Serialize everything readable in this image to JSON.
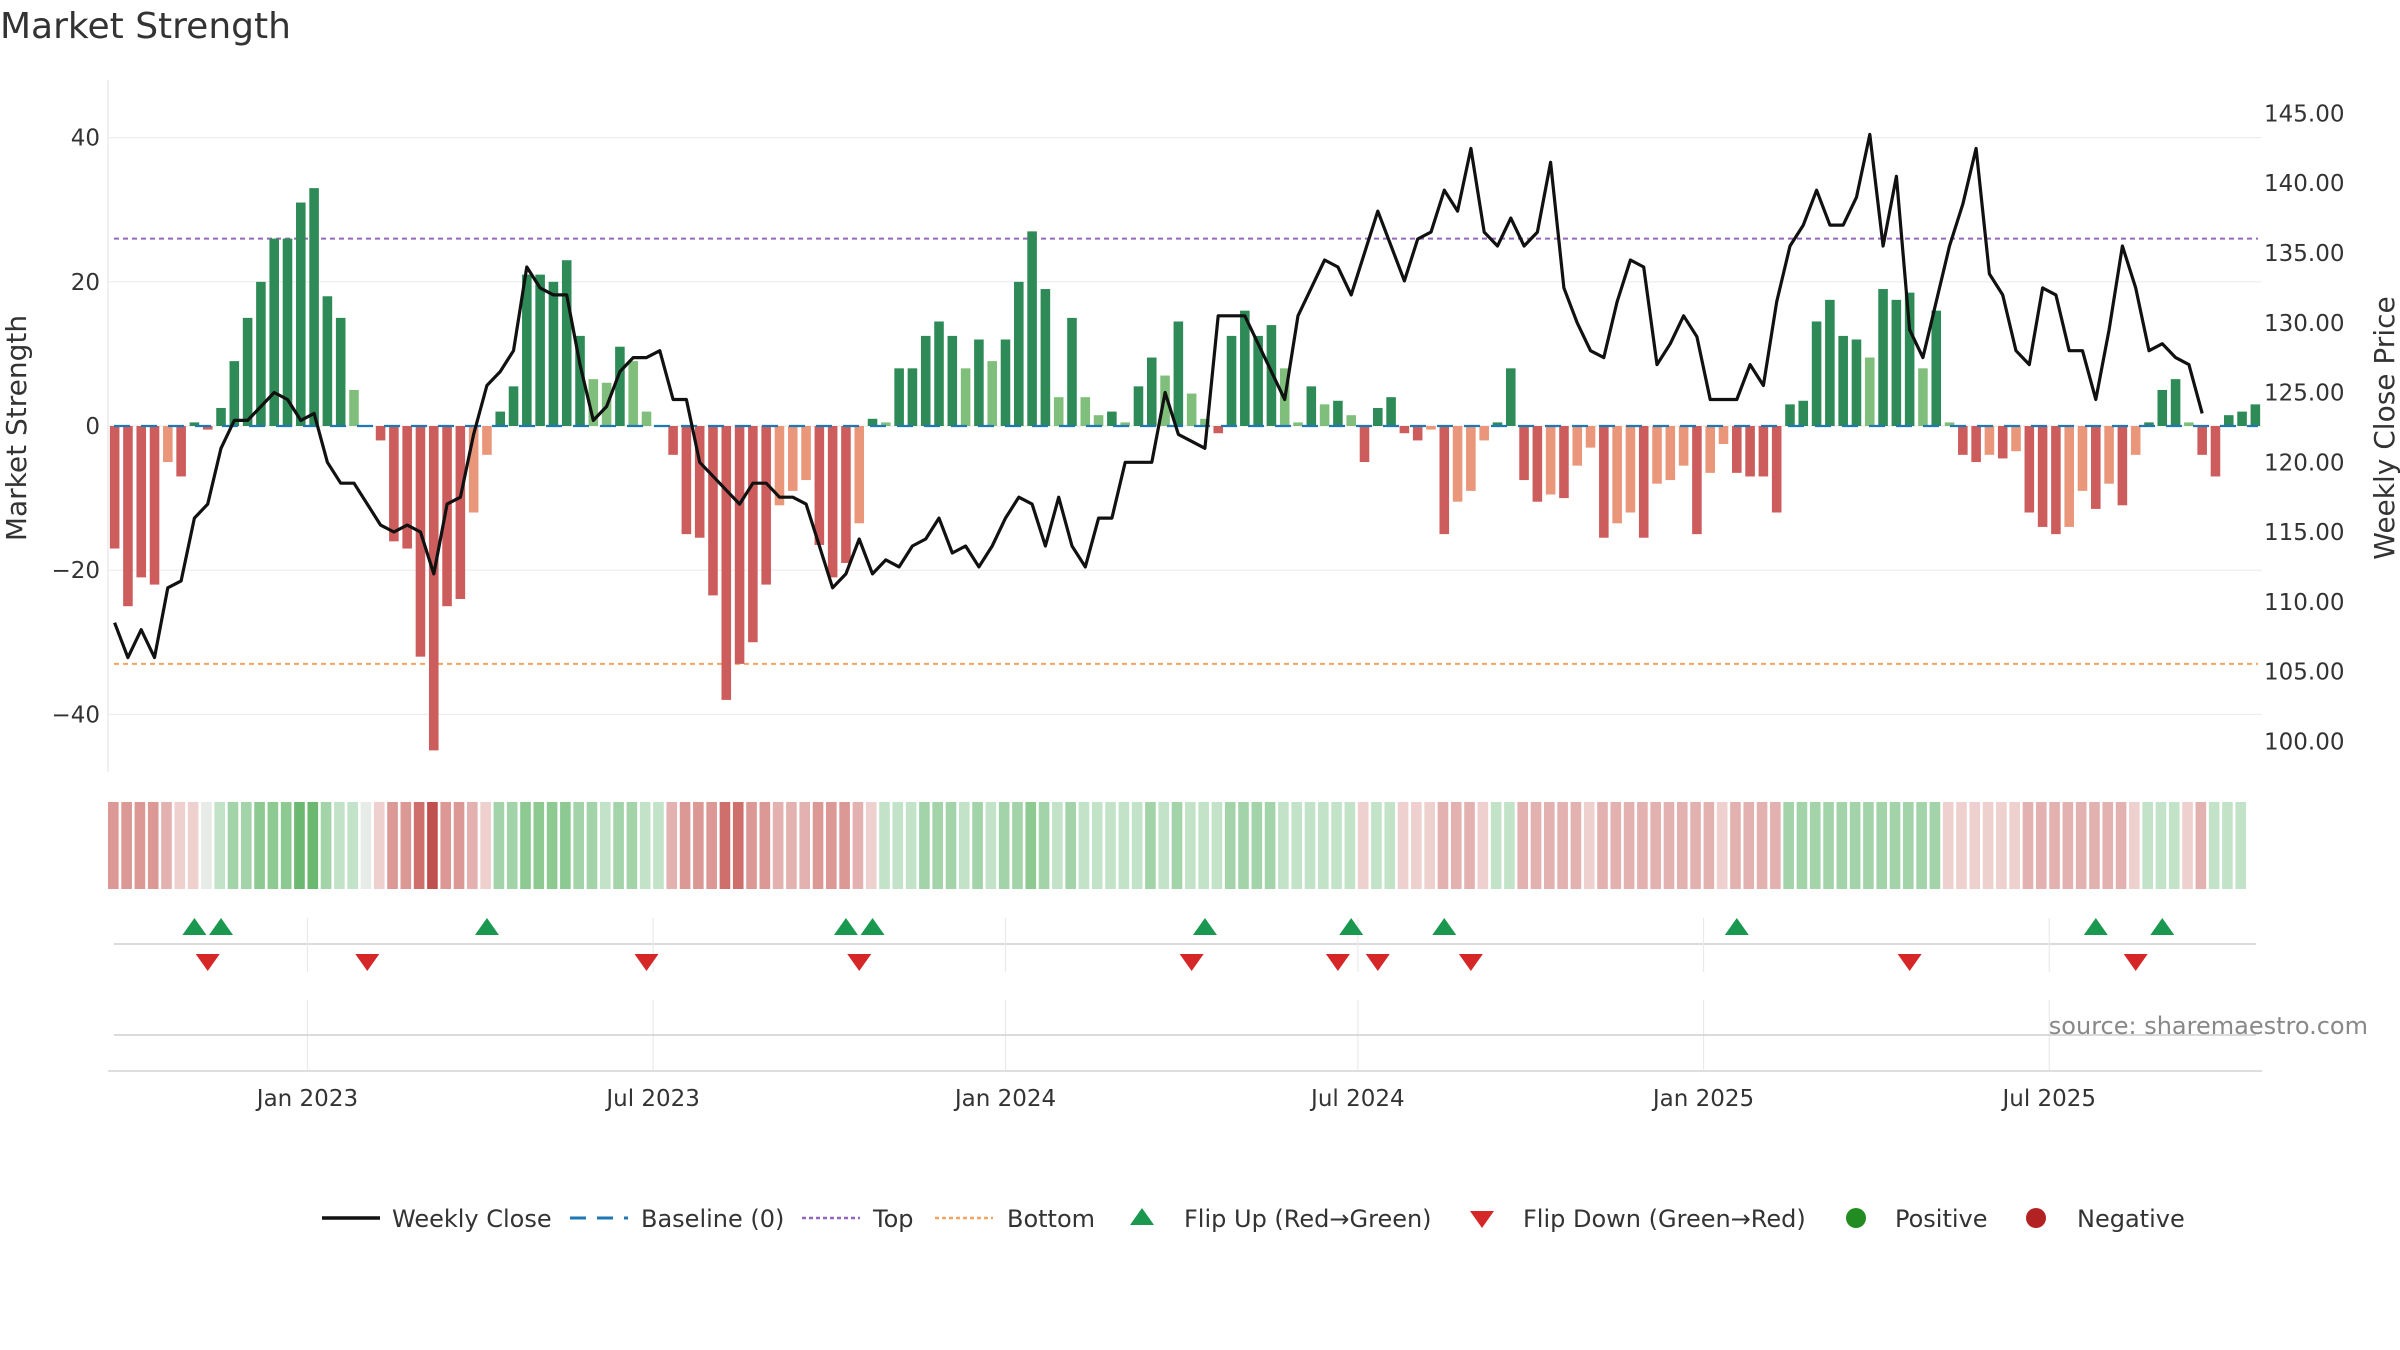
{
  "chart_data": {
    "type": "bar",
    "title": "Market Strength",
    "ylabel_left": "Market Strength",
    "ylabel_right": "Weekly Close Price",
    "ylim_left": [
      -48,
      48
    ],
    "ylim_right": [
      97.8,
      147.4
    ],
    "left_ticks": [
      "40",
      "20",
      "0",
      "−20",
      "−40"
    ],
    "left_tick_values": [
      40,
      20,
      0,
      -20,
      -40
    ],
    "right_ticks": [
      "145.00",
      "140.00",
      "135.00",
      "130.00",
      "125.00",
      "120.00",
      "115.00",
      "110.00",
      "105.00",
      "100.00"
    ],
    "right_tick_values": [
      145,
      140,
      135,
      130,
      125,
      120,
      115,
      110,
      105,
      100
    ],
    "x_ticks": [
      "Jan 2023",
      "Jul 2023",
      "Jan 2024",
      "Jul 2024",
      "Jan 2025",
      "Jul 2025"
    ],
    "x_tick_weeks": [
      15,
      41,
      67.5,
      94,
      120,
      146
    ],
    "top_level": 26,
    "bottom_level": -33,
    "strength": [
      -17,
      -25,
      -21,
      -22,
      -5,
      -7,
      0.5,
      -0.5,
      2.5,
      9,
      15,
      20,
      26,
      26,
      31,
      33,
      18,
      15,
      5,
      0,
      -2,
      -16,
      -17,
      -32,
      -45,
      -25,
      -24,
      -12,
      -4,
      2,
      5.5,
      21,
      21,
      20,
      23,
      12.5,
      6.5,
      6,
      11,
      9,
      2,
      0,
      -4,
      -15,
      -15.5,
      -23.5,
      -38,
      -33,
      -30,
      -22,
      -11,
      -9,
      -7.5,
      -16.5,
      -21,
      -19,
      -13.5,
      1,
      0.5,
      8,
      8,
      12.5,
      14.5,
      12.5,
      8,
      12,
      9,
      12,
      20,
      27,
      19,
      4,
      15,
      4,
      1.5,
      2,
      0.5,
      5.5,
      9.5,
      7,
      14.5,
      4.5,
      1,
      -1,
      12.5,
      16,
      12.5,
      14,
      8,
      0.5,
      5.5,
      3,
      3.5,
      1.5,
      -5,
      2.5,
      4,
      -1,
      -2,
      -0.5,
      -15,
      -10.5,
      -9,
      -2,
      0.5,
      8,
      -7.5,
      -10.5,
      -9.5,
      -10,
      -5.5,
      -3,
      -15.5,
      -13.5,
      -12,
      -15.5,
      -8,
      -7.5,
      -5.5,
      -15,
      -6.5,
      -2.5,
      -6.5,
      -7,
      -7,
      -12,
      3,
      3.5,
      14.5,
      17.5,
      12.5,
      12,
      9.5,
      19,
      17.5,
      18.5,
      8,
      16,
      0.5,
      -4,
      -5,
      -4,
      -4.5,
      -3.5,
      -12,
      -14,
      -15,
      -14,
      -9,
      -11.5,
      -8,
      -11,
      -4,
      0.5,
      5,
      6.5,
      0.5,
      -4,
      -7,
      1.5,
      2,
      3
    ],
    "close": [
      108.5,
      106,
      108,
      106,
      111,
      111.5,
      116,
      117,
      121,
      123,
      123,
      124,
      125,
      124.5,
      123,
      123.5,
      120,
      118.5,
      118.5,
      117,
      115.5,
      115,
      115.5,
      115,
      112,
      117,
      117.5,
      122,
      125.5,
      126.5,
      128,
      134,
      132.5,
      132,
      132,
      127,
      123,
      124,
      126.5,
      127.5,
      127.5,
      128,
      124.5,
      124.5,
      120,
      119,
      118,
      117,
      118.5,
      118.5,
      117.5,
      117.5,
      117,
      114,
      111,
      112,
      114.5,
      112,
      113,
      112.5,
      114,
      114.5,
      116,
      113.5,
      114,
      112.5,
      114,
      116,
      117.5,
      117,
      114,
      117.5,
      114,
      112.5,
      116,
      116,
      120,
      120,
      120,
      125,
      122,
      121.5,
      121,
      130.5,
      130.5,
      130.5,
      128.5,
      126.5,
      124.5,
      130.5,
      132.5,
      134.5,
      134,
      132,
      135,
      138,
      135.5,
      133,
      136,
      136.5,
      139.5,
      138,
      142.5,
      136.5,
      135.5,
      137.5,
      135.5,
      136.5,
      141.5,
      132.5,
      130,
      128,
      127.5,
      131.5,
      134.5,
      134,
      127,
      128.5,
      130.5,
      129,
      124.5,
      124.5,
      124.5,
      127,
      125.5,
      131.5,
      135.5,
      137,
      139.5,
      137,
      137,
      139,
      143.5,
      135.5,
      140.5,
      129.5,
      127.5,
      131.5,
      135.5,
      138.5,
      142.5,
      133.5,
      132,
      128,
      127,
      132.5,
      132,
      128,
      128,
      124.5,
      129.5,
      135.5,
      132.5,
      128,
      128.5,
      127.5,
      127,
      123.5
    ],
    "heat": [
      -3,
      -3,
      -3,
      -3,
      -2,
      -1,
      -1,
      0,
      1,
      2,
      2,
      3,
      3,
      3,
      4,
      4,
      2,
      1,
      1,
      0,
      -1,
      -3,
      -3,
      -4,
      -5,
      -3,
      -3,
      -2,
      -1,
      2,
      2,
      3,
      3,
      3,
      3,
      2,
      2,
      1,
      2,
      2,
      1,
      1,
      -2,
      -3,
      -3,
      -3,
      -4,
      -4,
      -3,
      -3,
      -2,
      -2,
      -2,
      -3,
      -3,
      -3,
      -2,
      -1,
      1,
      1,
      1,
      2,
      2,
      2,
      1,
      2,
      1,
      2,
      2,
      3,
      2,
      1,
      2,
      1,
      1,
      1,
      1,
      1,
      2,
      1,
      2,
      1,
      1,
      1,
      2,
      2,
      2,
      2,
      1,
      1,
      1,
      1,
      1,
      1,
      -1,
      1,
      1,
      -1,
      -1,
      -1,
      -2,
      -2,
      -2,
      -1,
      1,
      1,
      -2,
      -2,
      -2,
      -2,
      -2,
      -1,
      -2,
      -2,
      -2,
      -2,
      -2,
      -2,
      -2,
      -2,
      -2,
      -1,
      -2,
      -2,
      -2,
      -2,
      2,
      2,
      2,
      2,
      2,
      2,
      2,
      2,
      2,
      2,
      2,
      2,
      -1,
      -1,
      -1,
      -1,
      -1,
      -1,
      -2,
      -2,
      -2,
      -2,
      -2,
      -2,
      -2,
      -2,
      -1,
      1,
      1,
      1,
      -1,
      -2,
      1,
      1,
      1
    ],
    "flip_up_weeks": [
      6,
      8,
      28,
      55,
      57,
      82,
      93,
      100,
      122,
      149,
      154
    ],
    "flip_down_weeks": [
      7,
      19,
      40,
      56,
      81,
      92,
      95,
      102,
      135,
      152
    ],
    "legend": [
      "Weekly Close",
      "Baseline (0)",
      "Top",
      "Bottom",
      "Flip Up (Red→Green)",
      "Flip Down (Green→Red)",
      "Positive",
      "Negative"
    ],
    "colors": {
      "bar_pos_strong": "#2e8b57",
      "bar_pos_light": "#7fbf7b",
      "bar_neg_strong": "#cd5c5c",
      "bar_neg_light": "#e9967a",
      "close_line": "#111111",
      "baseline": "#1f77b4",
      "top": "#9467bd",
      "bottom": "#f4a460",
      "flip_up": "#1a9850",
      "flip_down": "#d62728",
      "positive": "#228b22",
      "negative": "#b22222"
    },
    "legend_placement": "bottom",
    "grid": true
  },
  "source": "source: sharemaestro.com"
}
